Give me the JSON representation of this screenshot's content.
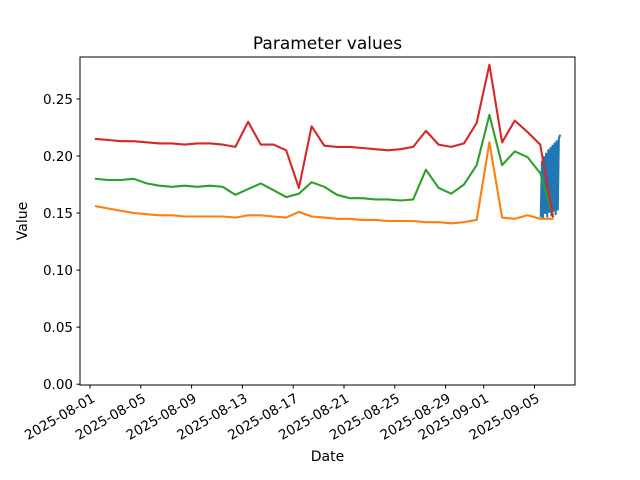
{
  "chart_data": {
    "type": "line",
    "title": "Parameter values",
    "xlabel": "Date",
    "ylabel": "Value",
    "grid": false,
    "legend": "none",
    "background_color": "#ffffff",
    "axis_color": "#000000",
    "ylim": [
      0,
      0.287
    ],
    "xlim": [
      "2025-07-30",
      "2025-09-08"
    ],
    "y_ticks": [
      0.0,
      0.05,
      0.1,
      0.15,
      0.2,
      0.25
    ],
    "y_tick_labels": [
      "0.00",
      "0.05",
      "0.10",
      "0.15",
      "0.20",
      "0.25"
    ],
    "x_tick_labels": [
      "2025-08-01",
      "2025-08-05",
      "2025-08-09",
      "2025-08-13",
      "2025-08-17",
      "2025-08-21",
      "2025-08-25",
      "2025-08-29",
      "2025-09-01",
      "2025-09-05"
    ],
    "series": [
      {
        "name": "blue-highfreq",
        "color": "#1f77b4",
        "x": [
          "2025-09-05T12:00",
          "2025-09-05T14:00",
          "2025-09-05T16:00",
          "2025-09-05T18:00",
          "2025-09-05T20:00",
          "2025-09-05T22:00",
          "2025-09-06T00:00",
          "2025-09-06T02:00",
          "2025-09-06T04:00",
          "2025-09-06T06:00",
          "2025-09-06T08:00",
          "2025-09-06T10:00",
          "2025-09-06T12:00",
          "2025-09-06T14:00",
          "2025-09-06T16:00",
          "2025-09-06T18:00",
          "2025-09-06T20:00",
          "2025-09-06T22:00",
          "2025-09-07T00:00"
        ],
        "y": [
          0.147,
          0.195,
          0.146,
          0.199,
          0.15,
          0.202,
          0.147,
          0.205,
          0.151,
          0.207,
          0.148,
          0.209,
          0.152,
          0.211,
          0.149,
          0.213,
          0.153,
          0.215,
          0.218
        ]
      },
      {
        "name": "orange",
        "color": "#ff7f0e",
        "x": [
          "2025-08-01",
          "2025-08-02",
          "2025-08-03",
          "2025-08-04",
          "2025-08-05",
          "2025-08-06",
          "2025-08-07",
          "2025-08-08",
          "2025-08-09",
          "2025-08-10",
          "2025-08-11",
          "2025-08-12",
          "2025-08-13",
          "2025-08-14",
          "2025-08-15",
          "2025-08-16",
          "2025-08-17",
          "2025-08-18",
          "2025-08-19",
          "2025-08-20",
          "2025-08-21",
          "2025-08-22",
          "2025-08-23",
          "2025-08-24",
          "2025-08-25",
          "2025-08-26",
          "2025-08-27",
          "2025-08-28",
          "2025-08-29",
          "2025-08-30",
          "2025-08-31",
          "2025-09-01",
          "2025-09-02",
          "2025-09-03",
          "2025-09-04",
          "2025-09-05",
          "2025-09-06"
        ],
        "y": [
          0.156,
          0.154,
          0.152,
          0.15,
          0.149,
          0.148,
          0.148,
          0.147,
          0.147,
          0.147,
          0.147,
          0.146,
          0.148,
          0.148,
          0.147,
          0.146,
          0.151,
          0.147,
          0.146,
          0.145,
          0.145,
          0.144,
          0.144,
          0.143,
          0.143,
          0.143,
          0.142,
          0.142,
          0.141,
          0.142,
          0.144,
          0.212,
          0.146,
          0.145,
          0.148,
          0.145,
          0.145
        ]
      },
      {
        "name": "green",
        "color": "#2ca02c",
        "x": [
          "2025-08-01",
          "2025-08-02",
          "2025-08-03",
          "2025-08-04",
          "2025-08-05",
          "2025-08-06",
          "2025-08-07",
          "2025-08-08",
          "2025-08-09",
          "2025-08-10",
          "2025-08-11",
          "2025-08-12",
          "2025-08-13",
          "2025-08-14",
          "2025-08-15",
          "2025-08-16",
          "2025-08-17",
          "2025-08-18",
          "2025-08-19",
          "2025-08-20",
          "2025-08-21",
          "2025-08-22",
          "2025-08-23",
          "2025-08-24",
          "2025-08-25",
          "2025-08-26",
          "2025-08-27",
          "2025-08-28",
          "2025-08-29",
          "2025-08-30",
          "2025-08-31",
          "2025-09-01",
          "2025-09-02",
          "2025-09-03",
          "2025-09-04",
          "2025-09-05",
          "2025-09-06"
        ],
        "y": [
          0.18,
          0.179,
          0.179,
          0.18,
          0.176,
          0.174,
          0.173,
          0.174,
          0.173,
          0.174,
          0.173,
          0.166,
          0.171,
          0.176,
          0.17,
          0.164,
          0.167,
          0.177,
          0.173,
          0.166,
          0.163,
          0.163,
          0.162,
          0.162,
          0.161,
          0.162,
          0.188,
          0.172,
          0.167,
          0.175,
          0.192,
          0.236,
          0.192,
          0.204,
          0.199,
          0.185,
          0.147
        ]
      },
      {
        "name": "red",
        "color": "#d62728",
        "x": [
          "2025-08-01",
          "2025-08-02",
          "2025-08-03",
          "2025-08-04",
          "2025-08-05",
          "2025-08-06",
          "2025-08-07",
          "2025-08-08",
          "2025-08-09",
          "2025-08-10",
          "2025-08-11",
          "2025-08-12",
          "2025-08-13",
          "2025-08-14",
          "2025-08-15",
          "2025-08-16",
          "2025-08-17",
          "2025-08-18",
          "2025-08-19",
          "2025-08-20",
          "2025-08-21",
          "2025-08-22",
          "2025-08-23",
          "2025-08-24",
          "2025-08-25",
          "2025-08-26",
          "2025-08-27",
          "2025-08-28",
          "2025-08-29",
          "2025-08-30",
          "2025-08-31",
          "2025-09-01",
          "2025-09-02",
          "2025-09-03",
          "2025-09-04",
          "2025-09-05",
          "2025-09-06"
        ],
        "y": [
          0.215,
          0.214,
          0.213,
          0.213,
          0.212,
          0.211,
          0.211,
          0.21,
          0.211,
          0.211,
          0.21,
          0.208,
          0.23,
          0.21,
          0.21,
          0.205,
          0.172,
          0.226,
          0.209,
          0.208,
          0.208,
          0.207,
          0.206,
          0.205,
          0.206,
          0.208,
          0.222,
          0.21,
          0.208,
          0.211,
          0.229,
          0.28,
          0.212,
          0.231,
          0.221,
          0.21,
          0.147
        ]
      }
    ]
  }
}
